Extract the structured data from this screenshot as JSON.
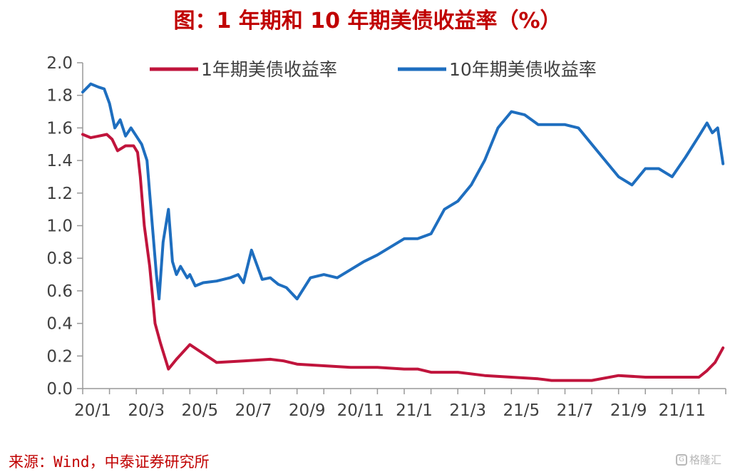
{
  "title": "图：1 年期和 10 年期美债收益率（%）",
  "source": "来源：Wind，中泰证券研究所",
  "watermark": "格隆汇",
  "chart_data": {
    "type": "line",
    "title": "图：1 年期和 10 年期美债收益率（%）",
    "xlabel": "",
    "ylabel": "",
    "ylim": [
      0,
      2.0
    ],
    "yticks": [
      "0.0",
      "0.2",
      "0.4",
      "0.6",
      "0.8",
      "1.0",
      "1.2",
      "1.4",
      "1.6",
      "1.8",
      "2.0"
    ],
    "xticks": [
      "20/1",
      "20/3",
      "20/5",
      "20/7",
      "20/9",
      "20/11",
      "21/1",
      "21/3",
      "21/5",
      "21/7",
      "21/9",
      "21/11"
    ],
    "grid": false,
    "legend": "top",
    "series": [
      {
        "name": "1年期美债收益率",
        "color": "#c0143c",
        "x": [
          0,
          0.3,
          0.6,
          0.9,
          1.1,
          1.3,
          1.6,
          1.9,
          2.05,
          2.15,
          2.3,
          2.5,
          2.7,
          2.9,
          3.2,
          3.5,
          4,
          5,
          6,
          7,
          7.5,
          8,
          9,
          10,
          11,
          12,
          12.5,
          13,
          14,
          15,
          16,
          17,
          17.5,
          18,
          19,
          20,
          21,
          22,
          23,
          23.3,
          23.6,
          23.9
        ],
        "values": [
          1.56,
          1.54,
          1.55,
          1.56,
          1.53,
          1.46,
          1.49,
          1.49,
          1.45,
          1.3,
          1.0,
          0.75,
          0.4,
          0.28,
          0.12,
          0.18,
          0.27,
          0.16,
          0.17,
          0.18,
          0.17,
          0.15,
          0.14,
          0.13,
          0.13,
          0.12,
          0.12,
          0.1,
          0.1,
          0.08,
          0.07,
          0.06,
          0.05,
          0.05,
          0.05,
          0.08,
          0.07,
          0.07,
          0.07,
          0.11,
          0.16,
          0.25
        ]
      },
      {
        "name": "10年期美债收益率",
        "color": "#1e6ebf",
        "x": [
          0,
          0.3,
          0.6,
          0.8,
          1.0,
          1.2,
          1.4,
          1.6,
          1.8,
          2.0,
          2.2,
          2.4,
          2.6,
          2.75,
          2.85,
          3.0,
          3.2,
          3.35,
          3.5,
          3.65,
          3.9,
          4.0,
          4.2,
          4.5,
          5.0,
          5.5,
          5.8,
          6.0,
          6.3,
          6.7,
          7.0,
          7.3,
          7.6,
          8.0,
          8.5,
          9,
          9.5,
          10,
          10.5,
          11,
          11.5,
          12,
          12.5,
          13,
          13.5,
          14,
          14.5,
          15,
          15.5,
          16,
          16.5,
          17,
          17.5,
          18,
          18.5,
          19,
          19.5,
          20,
          20.5,
          21,
          21.5,
          22,
          22.5,
          23,
          23.3,
          23.5,
          23.7,
          23.9
        ],
        "values": [
          1.82,
          1.87,
          1.85,
          1.84,
          1.75,
          1.6,
          1.65,
          1.55,
          1.6,
          1.55,
          1.5,
          1.4,
          1.0,
          0.7,
          0.55,
          0.9,
          1.1,
          0.78,
          0.7,
          0.75,
          0.68,
          0.7,
          0.63,
          0.65,
          0.66,
          0.68,
          0.7,
          0.65,
          0.85,
          0.67,
          0.68,
          0.64,
          0.62,
          0.55,
          0.68,
          0.7,
          0.68,
          0.73,
          0.78,
          0.82,
          0.87,
          0.92,
          0.92,
          0.95,
          1.1,
          1.15,
          1.25,
          1.4,
          1.6,
          1.7,
          1.68,
          1.62,
          1.62,
          1.62,
          1.6,
          1.5,
          1.4,
          1.3,
          1.25,
          1.35,
          1.35,
          1.3,
          1.42,
          1.55,
          1.63,
          1.57,
          1.6,
          1.38
        ]
      }
    ]
  }
}
